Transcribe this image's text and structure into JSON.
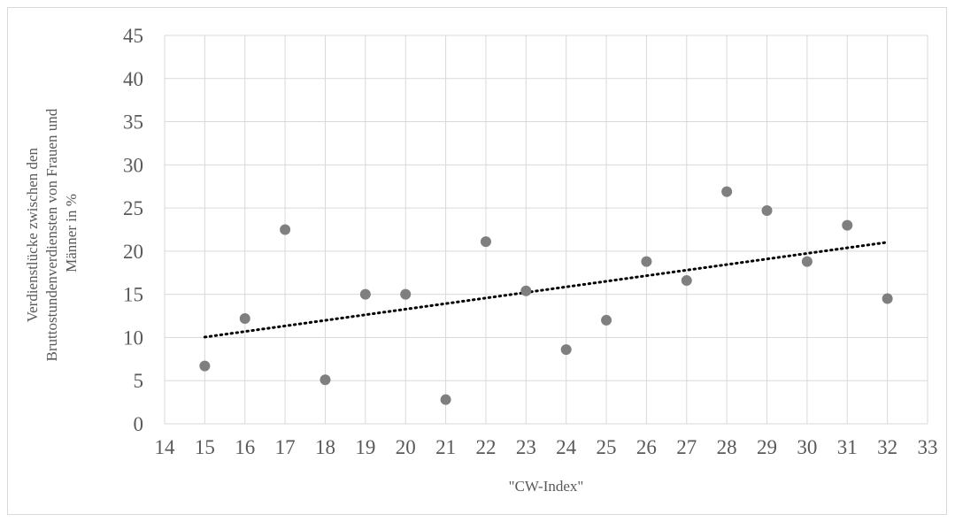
{
  "chart_data": {
    "type": "scatter",
    "title": "",
    "xlabel": "\"CW-Index\"",
    "ylabel_lines": [
      "Verdienstlücke zwischen den",
      "Bruttostundenverdiensten von Frauen und",
      "Männer in %"
    ],
    "xlim": [
      14,
      33
    ],
    "ylim": [
      0,
      45
    ],
    "x_ticks": [
      14,
      15,
      16,
      17,
      18,
      19,
      20,
      21,
      22,
      23,
      24,
      25,
      26,
      27,
      28,
      29,
      30,
      31,
      32,
      33
    ],
    "y_ticks": [
      0,
      5,
      10,
      15,
      20,
      25,
      30,
      35,
      40,
      45
    ],
    "grid": {
      "horizontal": true,
      "vertical": true
    },
    "legend": "none",
    "series": [
      {
        "color": "#7f7f7f",
        "points": [
          {
            "x": 15,
            "y": 6.7
          },
          {
            "x": 16,
            "y": 12.2
          },
          {
            "x": 17,
            "y": 22.5
          },
          {
            "x": 18,
            "y": 5.1
          },
          {
            "x": 19,
            "y": 15.0
          },
          {
            "x": 20,
            "y": 15.0
          },
          {
            "x": 21,
            "y": 2.8
          },
          {
            "x": 22,
            "y": 21.1
          },
          {
            "x": 23,
            "y": 15.4
          },
          {
            "x": 24,
            "y": 8.6
          },
          {
            "x": 25,
            "y": 12.0
          },
          {
            "x": 26,
            "y": 18.8
          },
          {
            "x": 27,
            "y": 16.6
          },
          {
            "x": 28,
            "y": 26.9
          },
          {
            "x": 29,
            "y": 24.7
          },
          {
            "x": 30,
            "y": 18.8
          },
          {
            "x": 31,
            "y": 23.0
          },
          {
            "x": 32,
            "y": 14.5
          }
        ]
      }
    ],
    "trendline": {
      "type": "linear",
      "style": "dotted",
      "color": "#000000",
      "x_start": 15,
      "x_end": 32
    },
    "colors": {
      "grid": "#d9d9d9",
      "text": "#595959"
    }
  }
}
